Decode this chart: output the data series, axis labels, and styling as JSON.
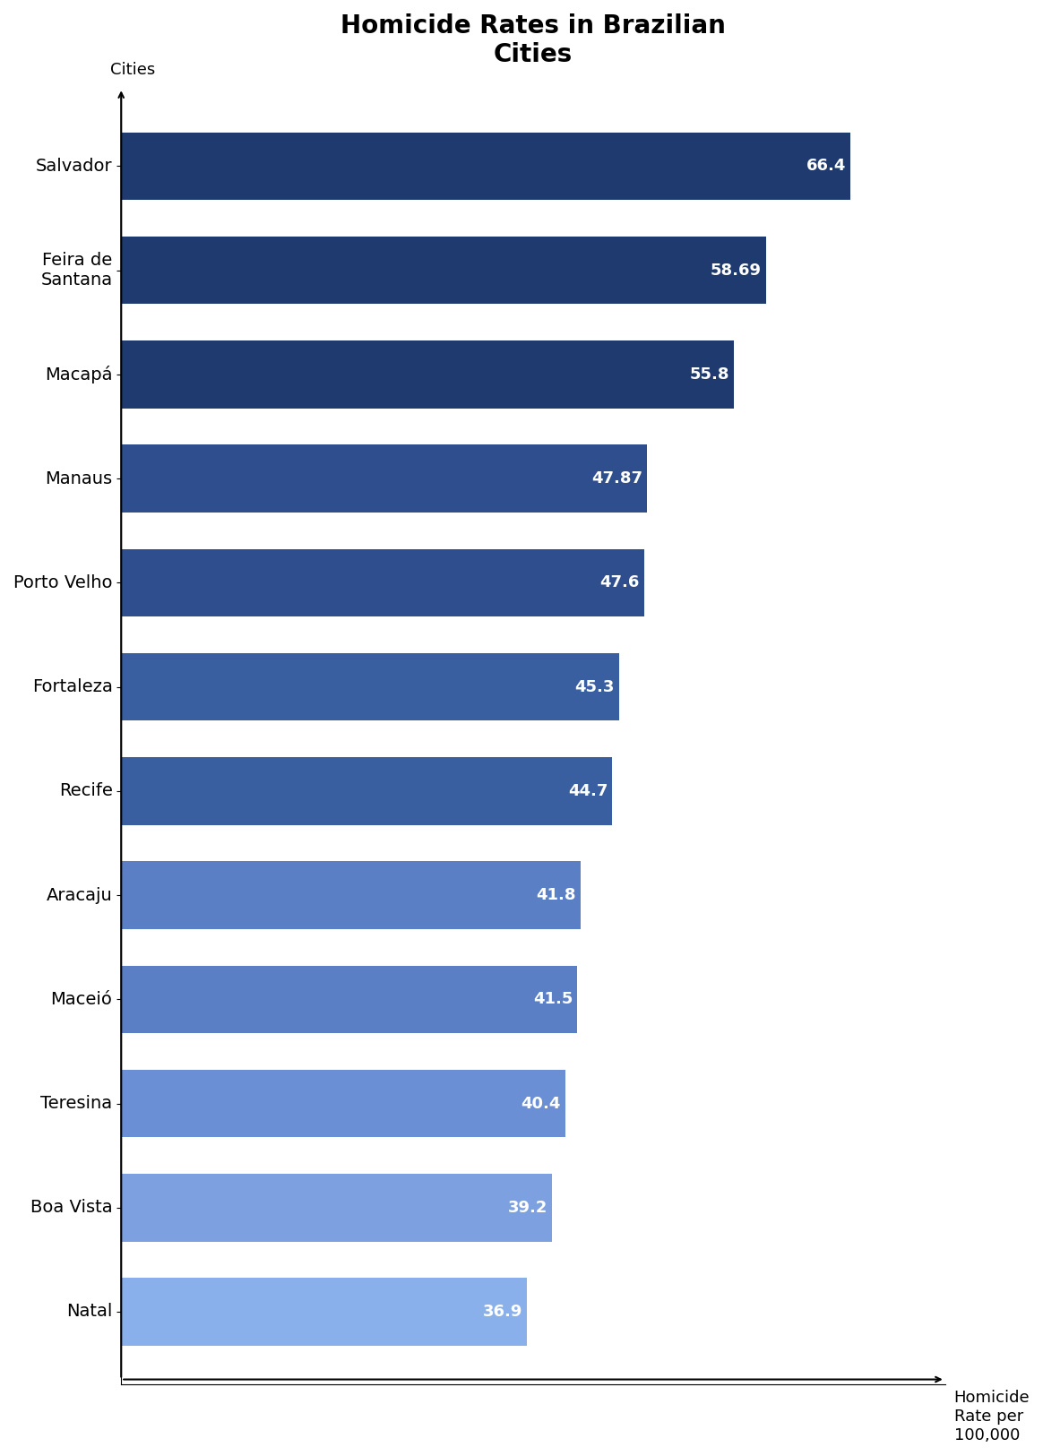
{
  "cities": [
    "Salvador",
    "Feira de\nSantana",
    "Macapá",
    "Manaus",
    "Porto Velho",
    "Fortaleza",
    "Recife",
    "Aracaju",
    "Maceió",
    "Teresina",
    "Boa Vista",
    "Natal"
  ],
  "values": [
    66.4,
    58.69,
    55.8,
    47.87,
    47.6,
    45.3,
    44.7,
    41.8,
    41.5,
    40.4,
    39.2,
    36.9
  ],
  "bar_colors": [
    "#1f3a6e",
    "#1f3a6e",
    "#1f3a6e",
    "#2e4e8e",
    "#2e4e8e",
    "#3a5fa0",
    "#3a5fa0",
    "#5b7fc4",
    "#5b7fc4",
    "#6b8fd4",
    "#7ca0e0",
    "#8ab0ec"
  ],
  "title": "Homicide Rates in Brazilian\nCities",
  "xlabel": "Homicide\nRate per\n100,000",
  "ylabel": "Cities",
  "xlim": [
    0,
    75
  ],
  "background_color": "#ffffff",
  "title_fontsize": 20,
  "label_fontsize": 13,
  "tick_fontsize": 14,
  "value_fontsize": 13
}
